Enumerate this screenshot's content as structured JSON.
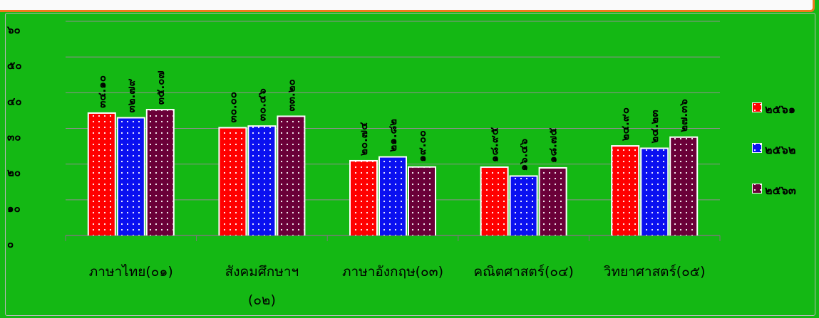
{
  "chart_data": {
    "type": "bar",
    "categories": [
      [
        "ภาษาไทย(๐๑)"
      ],
      [
        "สังคมศึกษาฯ",
        "(๐๒)"
      ],
      [
        "ภาษาอังกฤษ(๐๓)"
      ],
      [
        "คณิตศาสตร์(๐๔)"
      ],
      [
        "วิทยาศาสตร์(๐๕)"
      ]
    ],
    "series": [
      {
        "name": "๒๕๖๑",
        "color": "#ff0000",
        "values": [
          34.1,
          30.0,
          20.74,
          18.95,
          24.9
        ],
        "labels": [
          "๓๔.๑๐",
          "๓๐.๐๐",
          "๒๐.๗๔",
          "๑๘.๙๕",
          "๒๔.๙๐"
        ]
      },
      {
        "name": "๒๕๖๒",
        "color": "#0a10f0",
        "values": [
          32.79,
          30.46,
          21.82,
          16.46,
          24.23
        ],
        "labels": [
          "๓๒.๗๙",
          "๓๐.๔๖",
          "๒๑.๘๒",
          "๑๖.๔๖",
          "๒๔.๒๓"
        ]
      },
      {
        "name": "๒๕๖๓",
        "color": "#6a0038",
        "values": [
          35.07,
          33.2,
          19.0,
          18.75,
          27.36
        ],
        "labels": [
          "๓๕.๐๗",
          "๓๓.๒๐",
          "๑๙.๐๐",
          "๑๘.๗๕",
          "๒๗.๓๖"
        ]
      }
    ],
    "y_ticks": [
      {
        "value": 0,
        "label": "๐"
      },
      {
        "value": 10,
        "label": "๑๐"
      },
      {
        "value": 20,
        "label": "๒๐"
      },
      {
        "value": 30,
        "label": "๓๐"
      },
      {
        "value": 40,
        "label": "๔๐"
      },
      {
        "value": 50,
        "label": "๕๐"
      },
      {
        "value": 60,
        "label": "๖๐"
      }
    ],
    "ylim": [
      0,
      60
    ],
    "grid": true,
    "legend_position": "right",
    "colors": {
      "background": "#14b814",
      "grid": "#8f8f8f",
      "dots": "#ffffff"
    }
  }
}
